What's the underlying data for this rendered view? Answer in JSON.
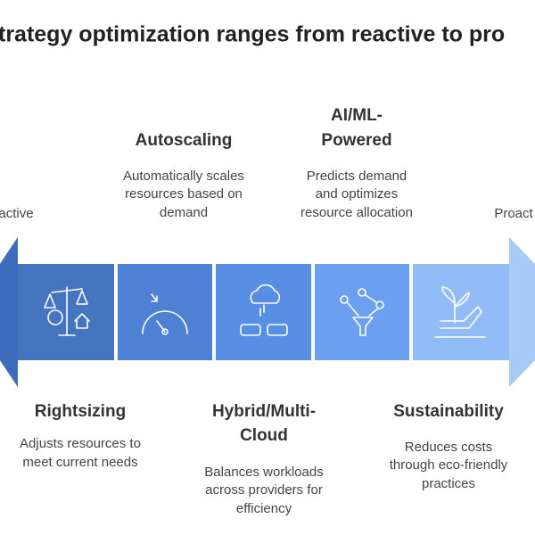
{
  "header": {
    "title": "trategy optimization ranges from reactive to pro"
  },
  "ends": {
    "left": "active",
    "right": "Proact"
  },
  "stages": [
    {
      "title": [
        "Rightsizing"
      ],
      "description": [
        "Adjusts resources to",
        "meet current needs"
      ]
    },
    {
      "title": [
        "Autoscaling"
      ],
      "description": [
        "Automatically scales",
        "resources based on",
        "demand"
      ]
    },
    {
      "title": [
        "Hybrid/Multi-",
        "Cloud"
      ],
      "description": [
        "Balances workloads",
        "across providers for",
        "efficiency"
      ]
    },
    {
      "title": [
        "AI/ML-",
        "Powered"
      ],
      "description": [
        "Predicts demand",
        "and optimizes",
        "resource allocation"
      ]
    },
    {
      "title": [
        "Sustainability"
      ],
      "description": [
        "Reduces costs",
        "through eco-friendly",
        "practices"
      ]
    }
  ]
}
